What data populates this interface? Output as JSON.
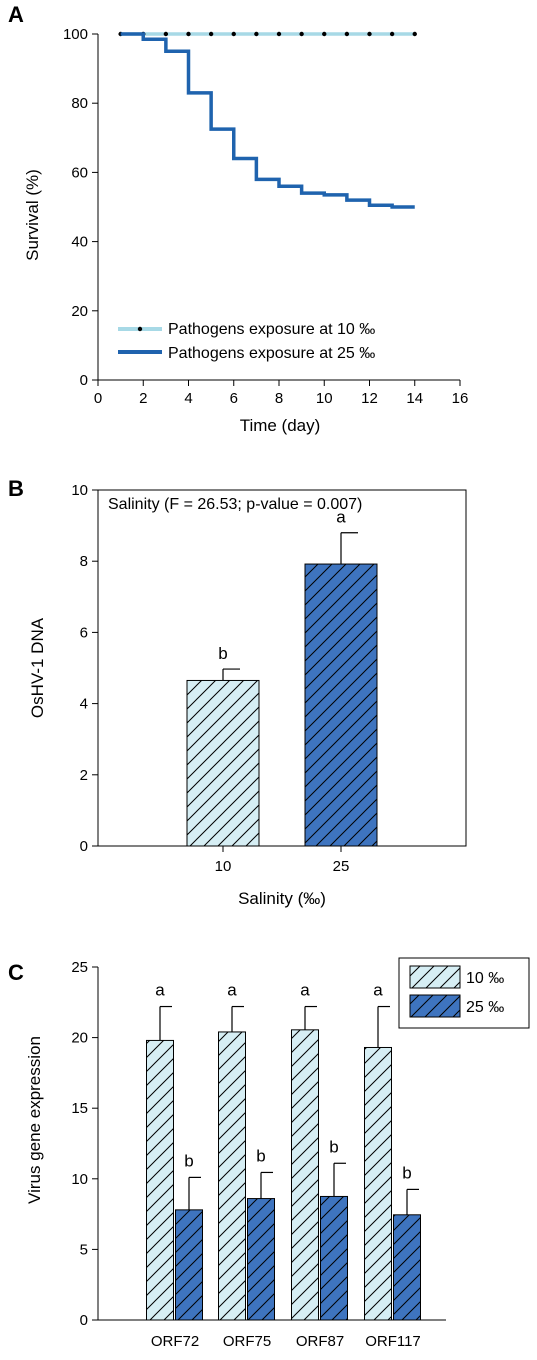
{
  "colors": {
    "light_fill": "#d6eef4",
    "light_line": "#a7d9e6",
    "dark_fill": "#3e74bf",
    "dark_line": "#1f63ae",
    "axis": "#000000"
  },
  "chart_data": [
    {
      "panel": "A",
      "type": "line",
      "xlabel": "Time (day)",
      "ylabel": "Survival (%)",
      "xlim": [
        0,
        16
      ],
      "ylim": [
        0,
        100
      ],
      "xticks": [
        "0",
        "2",
        "4",
        "6",
        "8",
        "10",
        "12",
        "14",
        "16"
      ],
      "yticks": [
        "0",
        "20",
        "40",
        "60",
        "80",
        "100"
      ],
      "legend_position": "bottom-left",
      "series": [
        {
          "name": "Pathogens exposure at 10 ‰",
          "step": false,
          "markers": true,
          "x": [
            1,
            2,
            3,
            4,
            5,
            6,
            7,
            8,
            9,
            10,
            11,
            12,
            13,
            14
          ],
          "y": [
            100,
            100,
            100,
            100,
            100,
            100,
            100,
            100,
            100,
            100,
            100,
            100,
            100,
            100
          ]
        },
        {
          "name": "Pathogens exposure at 25 ‰",
          "step": true,
          "markers": false,
          "x": [
            1,
            2,
            3,
            4,
            5,
            6,
            7,
            8,
            9,
            10,
            11,
            12,
            13,
            14
          ],
          "y": [
            100,
            98.5,
            95,
            83,
            72.5,
            64,
            58,
            56,
            54,
            53.5,
            52,
            50.5,
            50,
            50
          ]
        }
      ]
    },
    {
      "panel": "B",
      "type": "bar",
      "annotation": "Salinity (F = 26.53; p-value = 0.007)",
      "xlabel": "Salinity (‰)",
      "ylabel": "OsHV-1 DNA",
      "ylim": [
        0,
        10
      ],
      "yticks": [
        "0",
        "2",
        "4",
        "6",
        "8",
        "10"
      ],
      "categories": [
        "10",
        "25"
      ],
      "values": [
        4.65,
        7.92
      ],
      "errors": [
        0.32,
        0.88
      ],
      "letters": [
        "b",
        "a"
      ]
    },
    {
      "panel": "C",
      "type": "bar",
      "ylabel": "Virus gene expression",
      "ylim": [
        0,
        25
      ],
      "yticks": [
        "0",
        "5",
        "10",
        "15",
        "20",
        "25"
      ],
      "categories": [
        "ORF72",
        "ORF75",
        "ORF87",
        "ORF117"
      ],
      "legend_position": "top-right",
      "series": [
        {
          "name": "10 ‰",
          "values": [
            19.8,
            20.4,
            20.55,
            19.3
          ],
          "errors": [
            2.4,
            1.8,
            1.65,
            2.9
          ],
          "letters": [
            "a",
            "a",
            "a",
            "a"
          ]
        },
        {
          "name": "25 ‰",
          "values": [
            7.8,
            8.6,
            8.75,
            7.45
          ],
          "errors": [
            2.3,
            1.85,
            2.35,
            1.8
          ],
          "letters": [
            "b",
            "b",
            "b",
            "b"
          ]
        }
      ]
    }
  ]
}
